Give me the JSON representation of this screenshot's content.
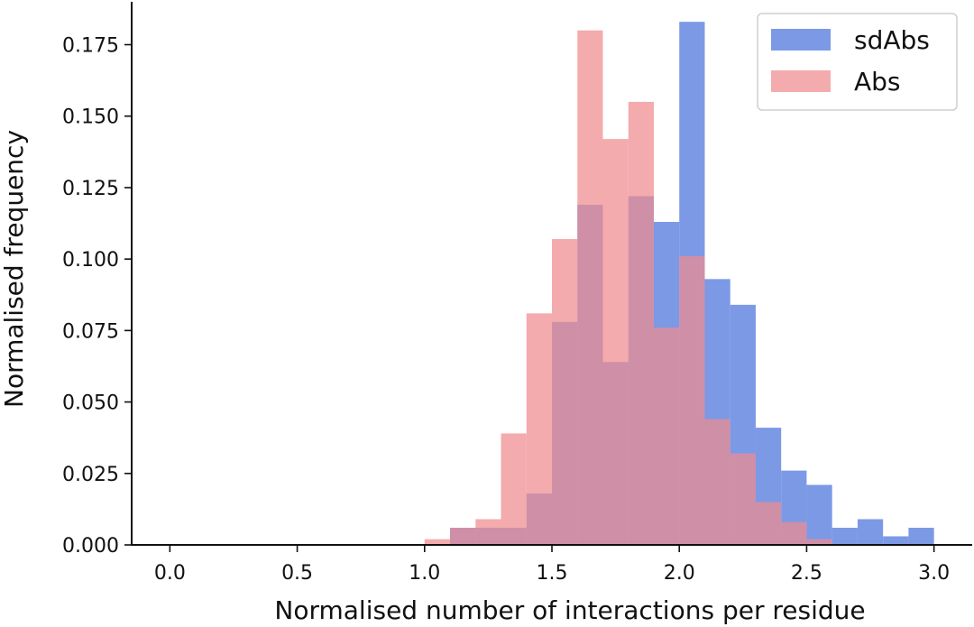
{
  "chart_data": {
    "type": "histogram",
    "title": "",
    "xlabel": "Normalised number of interactions per residue",
    "ylabel": "Normalised frequency",
    "xlim": [
      -0.15,
      3.15
    ],
    "ylim": [
      0,
      0.19
    ],
    "xticks": [
      0.0,
      0.5,
      1.0,
      1.5,
      2.0,
      2.5,
      3.0
    ],
    "xtick_labels": [
      "0.0",
      "0.5",
      "1.0",
      "1.5",
      "2.0",
      "2.5",
      "3.0"
    ],
    "yticks": [
      0.0,
      0.025,
      0.05,
      0.075,
      0.1,
      0.125,
      0.15,
      0.175
    ],
    "ytick_labels": [
      "0.000",
      "0.025",
      "0.050",
      "0.075",
      "0.100",
      "0.125",
      "0.150",
      "0.175"
    ],
    "bin_width": 0.1,
    "legend_position": "top-right",
    "series": [
      {
        "name": "sdAbs",
        "color": "#5b7fe0",
        "opacity": 0.8,
        "bins": [
          [
            1.1,
            0.006
          ],
          [
            1.2,
            0.006
          ],
          [
            1.3,
            0.006
          ],
          [
            1.4,
            0.018
          ],
          [
            1.5,
            0.078
          ],
          [
            1.6,
            0.119
          ],
          [
            1.7,
            0.064
          ],
          [
            1.8,
            0.122
          ],
          [
            1.9,
            0.113
          ],
          [
            2.0,
            0.183
          ],
          [
            2.1,
            0.093
          ],
          [
            2.2,
            0.084
          ],
          [
            2.3,
            0.041
          ],
          [
            2.4,
            0.026
          ],
          [
            2.5,
            0.021
          ],
          [
            2.6,
            0.006
          ],
          [
            2.7,
            0.009
          ],
          [
            2.8,
            0.003
          ],
          [
            2.9,
            0.006
          ]
        ]
      },
      {
        "name": "Abs",
        "color": "#f08a8f",
        "opacity": 0.72,
        "bins": [
          [
            1.0,
            0.002
          ],
          [
            1.1,
            0.006
          ],
          [
            1.2,
            0.009
          ],
          [
            1.3,
            0.039
          ],
          [
            1.4,
            0.081
          ],
          [
            1.5,
            0.107
          ],
          [
            1.6,
            0.18
          ],
          [
            1.7,
            0.142
          ],
          [
            1.8,
            0.155
          ],
          [
            1.9,
            0.076
          ],
          [
            2.0,
            0.101
          ],
          [
            2.1,
            0.044
          ],
          [
            2.2,
            0.032
          ],
          [
            2.3,
            0.015
          ],
          [
            2.4,
            0.008
          ],
          [
            2.5,
            0.002
          ]
        ]
      }
    ]
  }
}
